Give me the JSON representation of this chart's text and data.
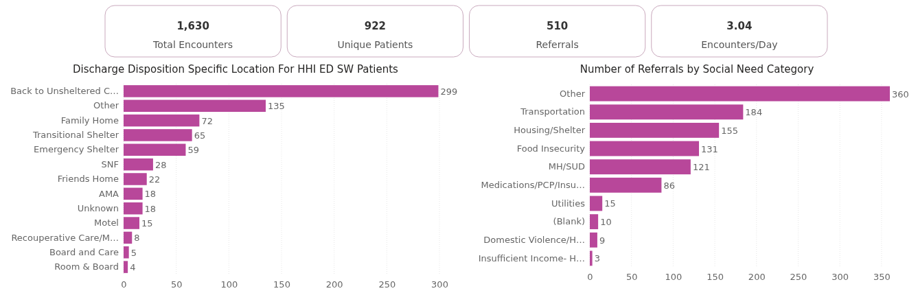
{
  "chart_data": [
    {
      "type": "other",
      "annotations": [
        "1,630",
        "Total Encounters",
        "922",
        "Unique Patients",
        "510",
        "Referrals",
        "3.04",
        "Encounters/Day"
      ]
    },
    {
      "type": "bar",
      "orientation": "horizontal",
      "title": "Discharge Disposition Specific Location For HHI ED SW Patients",
      "categories": [
        "Back to Unsheltered C…",
        "Other",
        "Family Home",
        "Transitional Shelter",
        "Emergency Shelter",
        "SNF",
        "Friends Home",
        "AMA",
        "Unknown",
        "Motel",
        "Recouperative Care/M…",
        "Board and Care",
        "Room & Board"
      ],
      "values": [
        299,
        135,
        72,
        65,
        59,
        28,
        22,
        18,
        18,
        15,
        8,
        5,
        4
      ],
      "color": "#b8479a",
      "xlim": [
        0,
        300
      ],
      "xticks": [
        0,
        50,
        100,
        150,
        200,
        250,
        300
      ],
      "grid": "x",
      "data_labels": true
    },
    {
      "type": "bar",
      "orientation": "horizontal",
      "title": "Number of Referrals by Social Need Category",
      "categories": [
        "Other",
        "Transportation",
        "Housing/Shelter",
        "Food Insecurity",
        "MH/SUD",
        "Medications/PCP/Insu…",
        "Utilities",
        "(Blank)",
        "Domestic Violence/H…",
        "Insufficient Income- H…"
      ],
      "values": [
        360,
        184,
        155,
        131,
        121,
        86,
        15,
        10,
        9,
        3
      ],
      "color": "#b8479a",
      "xlim": [
        0,
        360
      ],
      "xticks": [
        0,
        50,
        100,
        150,
        200,
        250,
        300,
        350
      ],
      "grid": "x",
      "data_labels": true
    }
  ]
}
